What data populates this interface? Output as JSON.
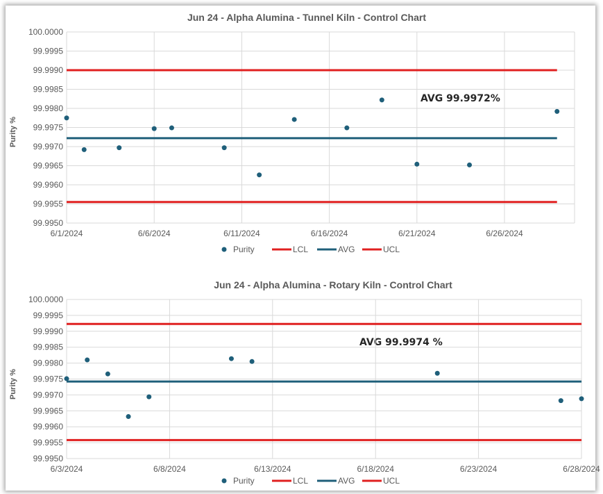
{
  "colors": {
    "point": "#1f5f7a",
    "lcl": "#e02020",
    "ucl": "#e02020",
    "avg": "#1f5f7a",
    "grid": "#d9d9d9",
    "text": "#595959"
  },
  "chart_data": [
    {
      "type": "scatter",
      "title": "Jun 24 - Alpha Alumina  - Tunnel Kiln  - Control Chart",
      "ylabel": "Purity %",
      "xlabel": "",
      "ylim": [
        99.995,
        100.0
      ],
      "y_ticks": [
        "100.0000",
        "99.9995",
        "99.9990",
        "99.9985",
        "99.9980",
        "99.9975",
        "99.9970",
        "99.9965",
        "99.9960",
        "99.9955",
        "99.9950"
      ],
      "xlim": [
        "2024-06-01",
        "2024-06-30"
      ],
      "x_ticks": [
        "6/1/2024",
        "6/6/2024",
        "6/11/2024",
        "6/16/2024",
        "6/21/2024",
        "6/26/2024"
      ],
      "x_tick_dates": [
        "2024-06-01",
        "2024-06-06",
        "2024-06-11",
        "2024-06-16",
        "2024-06-21",
        "2024-06-26"
      ],
      "annotation": "AVG 99.9972%",
      "grid": true,
      "legend_position": "bottom",
      "legend": [
        "Purity",
        "LCL",
        "AVG",
        "UCL"
      ],
      "control_lines": {
        "LCL": 99.99555,
        "AVG": 99.99722,
        "UCL": 99.999
      },
      "control_range": [
        "2024-06-01",
        "2024-06-29"
      ],
      "series": [
        {
          "name": "Purity",
          "points": [
            {
              "date": "2024-06-01",
              "y": 99.99775
            },
            {
              "date": "2024-06-02",
              "y": 99.99692
            },
            {
              "date": "2024-06-04",
              "y": 99.99697
            },
            {
              "date": "2024-06-06",
              "y": 99.99747
            },
            {
              "date": "2024-06-07",
              "y": 99.99749
            },
            {
              "date": "2024-06-10",
              "y": 99.99697
            },
            {
              "date": "2024-06-12",
              "y": 99.99626
            },
            {
              "date": "2024-06-14",
              "y": 99.99771
            },
            {
              "date": "2024-06-17",
              "y": 99.99749
            },
            {
              "date": "2024-06-19",
              "y": 99.99822
            },
            {
              "date": "2024-06-21",
              "y": 99.99654
            },
            {
              "date": "2024-06-24",
              "y": 99.99652
            },
            {
              "date": "2024-06-29",
              "y": 99.99792
            }
          ]
        }
      ]
    },
    {
      "type": "scatter",
      "title": "Jun 24 - Alpha Alumina - Rotary Kiln -  Control Chart",
      "ylabel": "Purity %",
      "xlabel": "",
      "ylim": [
        99.995,
        100.0
      ],
      "y_ticks": [
        "100.0000",
        "99.9995",
        "99.9990",
        "99.9985",
        "99.9980",
        "99.9975",
        "99.9970",
        "99.9965",
        "99.9960",
        "99.9955",
        "99.9950"
      ],
      "xlim": [
        "2024-06-03",
        "2024-06-28"
      ],
      "x_ticks": [
        "6/3/2024",
        "6/8/2024",
        "6/13/2024",
        "6/18/2024",
        "6/23/2024",
        "6/28/2024"
      ],
      "x_tick_dates": [
        "2024-06-03",
        "2024-06-08",
        "2024-06-13",
        "2024-06-18",
        "2024-06-23",
        "2024-06-28"
      ],
      "annotation": "AVG 99.9974 %",
      "grid": true,
      "legend_position": "bottom",
      "legend": [
        "Purity",
        "LCL",
        "AVG",
        "UCL"
      ],
      "control_lines": {
        "LCL": 99.99558,
        "AVG": 99.99742,
        "UCL": 99.99923
      },
      "control_range": [
        "2024-06-03",
        "2024-06-28"
      ],
      "series": [
        {
          "name": "Purity",
          "points": [
            {
              "date": "2024-06-03",
              "y": 99.99751
            },
            {
              "date": "2024-06-04",
              "y": 99.9981
            },
            {
              "date": "2024-06-05",
              "y": 99.99766
            },
            {
              "date": "2024-06-06",
              "y": 99.99632
            },
            {
              "date": "2024-06-07",
              "y": 99.99694
            },
            {
              "date": "2024-06-11",
              "y": 99.99814
            },
            {
              "date": "2024-06-12",
              "y": 99.99805
            },
            {
              "date": "2024-06-21",
              "y": 99.99768
            },
            {
              "date": "2024-06-27",
              "y": 99.99682
            },
            {
              "date": "2024-06-28",
              "y": 99.99688
            }
          ]
        }
      ]
    }
  ]
}
